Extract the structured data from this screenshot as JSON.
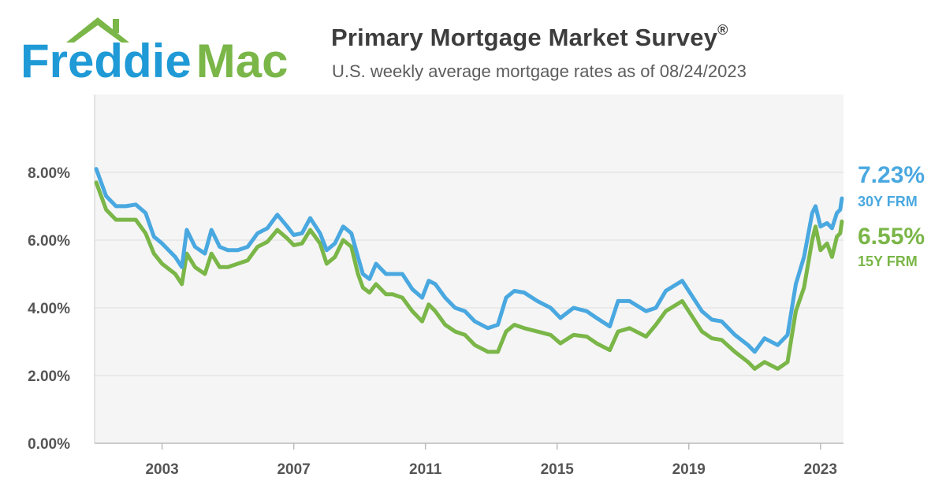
{
  "header": {
    "logo_text_1": "Freddie",
    "logo_text_2": "Mac",
    "title": "Primary Mortgage Market Survey",
    "title_mark": "®",
    "subtitle": "U.S. weekly average mortgage rates as of 08/24/2023"
  },
  "colors": {
    "blue": "#4aa8e0",
    "green": "#7ab648",
    "plot_bg": "#f5f5f5",
    "grid": "#dddddd",
    "tick_text": "#555555"
  },
  "latest": {
    "y30_value": "7.23%",
    "y30_label": "30Y FRM",
    "y15_value": "6.55%",
    "y15_label": "15Y FRM"
  },
  "chart_data": {
    "type": "line",
    "xlim": [
      2000.95,
      2023.7
    ],
    "ylim": [
      0,
      10.3
    ],
    "grid": "horizontal",
    "y_ticks": [
      0,
      2,
      4,
      6,
      8
    ],
    "y_tick_labels": [
      "0.00%",
      "2.00%",
      "4.00%",
      "6.00%",
      "8.00%"
    ],
    "x_ticks": [
      2003,
      2007,
      2011,
      2015,
      2019,
      2023
    ],
    "x_tick_labels": [
      "2003",
      "2007",
      "2011",
      "2015",
      "2019",
      "2023"
    ],
    "series": [
      {
        "name": "30Y FRM",
        "color": "#4aa8e0",
        "points": [
          [
            2001.0,
            8.1
          ],
          [
            2001.3,
            7.3
          ],
          [
            2001.6,
            7.0
          ],
          [
            2001.9,
            7.0
          ],
          [
            2002.2,
            7.05
          ],
          [
            2002.5,
            6.8
          ],
          [
            2002.75,
            6.1
          ],
          [
            2003.0,
            5.9
          ],
          [
            2003.4,
            5.5
          ],
          [
            2003.6,
            5.2
          ],
          [
            2003.75,
            6.3
          ],
          [
            2004.0,
            5.8
          ],
          [
            2004.3,
            5.6
          ],
          [
            2004.5,
            6.3
          ],
          [
            2004.75,
            5.8
          ],
          [
            2005.0,
            5.7
          ],
          [
            2005.3,
            5.7
          ],
          [
            2005.6,
            5.8
          ],
          [
            2005.9,
            6.2
          ],
          [
            2006.2,
            6.35
          ],
          [
            2006.5,
            6.75
          ],
          [
            2006.8,
            6.4
          ],
          [
            2007.0,
            6.15
          ],
          [
            2007.25,
            6.2
          ],
          [
            2007.5,
            6.65
          ],
          [
            2007.8,
            6.2
          ],
          [
            2008.0,
            5.7
          ],
          [
            2008.25,
            5.9
          ],
          [
            2008.5,
            6.4
          ],
          [
            2008.75,
            6.2
          ],
          [
            2008.95,
            5.5
          ],
          [
            2009.1,
            5.0
          ],
          [
            2009.3,
            4.85
          ],
          [
            2009.5,
            5.3
          ],
          [
            2009.8,
            5.0
          ],
          [
            2010.0,
            5.0
          ],
          [
            2010.3,
            5.0
          ],
          [
            2010.6,
            4.55
          ],
          [
            2010.9,
            4.3
          ],
          [
            2011.1,
            4.8
          ],
          [
            2011.3,
            4.7
          ],
          [
            2011.6,
            4.3
          ],
          [
            2011.9,
            4.0
          ],
          [
            2012.2,
            3.9
          ],
          [
            2012.5,
            3.6
          ],
          [
            2012.9,
            3.4
          ],
          [
            2013.2,
            3.5
          ],
          [
            2013.45,
            4.3
          ],
          [
            2013.7,
            4.5
          ],
          [
            2014.0,
            4.45
          ],
          [
            2014.4,
            4.2
          ],
          [
            2014.8,
            4.0
          ],
          [
            2015.1,
            3.7
          ],
          [
            2015.5,
            4.0
          ],
          [
            2015.9,
            3.9
          ],
          [
            2016.2,
            3.7
          ],
          [
            2016.6,
            3.45
          ],
          [
            2016.85,
            4.2
          ],
          [
            2017.2,
            4.2
          ],
          [
            2017.7,
            3.9
          ],
          [
            2018.0,
            4.0
          ],
          [
            2018.3,
            4.5
          ],
          [
            2018.8,
            4.8
          ],
          [
            2019.0,
            4.5
          ],
          [
            2019.4,
            3.9
          ],
          [
            2019.7,
            3.65
          ],
          [
            2020.0,
            3.6
          ],
          [
            2020.4,
            3.2
          ],
          [
            2020.8,
            2.9
          ],
          [
            2021.0,
            2.7
          ],
          [
            2021.3,
            3.1
          ],
          [
            2021.7,
            2.9
          ],
          [
            2022.0,
            3.2
          ],
          [
            2022.25,
            4.7
          ],
          [
            2022.5,
            5.5
          ],
          [
            2022.75,
            6.8
          ],
          [
            2022.85,
            7.0
          ],
          [
            2023.0,
            6.4
          ],
          [
            2023.2,
            6.5
          ],
          [
            2023.35,
            6.35
          ],
          [
            2023.5,
            6.8
          ],
          [
            2023.6,
            6.9
          ],
          [
            2023.65,
            7.23
          ]
        ]
      },
      {
        "name": "15Y FRM",
        "color": "#7ab648",
        "points": [
          [
            2001.0,
            7.7
          ],
          [
            2001.3,
            6.9
          ],
          [
            2001.6,
            6.6
          ],
          [
            2001.9,
            6.6
          ],
          [
            2002.2,
            6.6
          ],
          [
            2002.5,
            6.2
          ],
          [
            2002.75,
            5.6
          ],
          [
            2003.0,
            5.3
          ],
          [
            2003.4,
            5.0
          ],
          [
            2003.6,
            4.7
          ],
          [
            2003.75,
            5.6
          ],
          [
            2004.0,
            5.2
          ],
          [
            2004.3,
            5.0
          ],
          [
            2004.5,
            5.6
          ],
          [
            2004.75,
            5.2
          ],
          [
            2005.0,
            5.2
          ],
          [
            2005.3,
            5.3
          ],
          [
            2005.6,
            5.4
          ],
          [
            2005.9,
            5.8
          ],
          [
            2006.2,
            5.95
          ],
          [
            2006.5,
            6.3
          ],
          [
            2006.8,
            6.05
          ],
          [
            2007.0,
            5.85
          ],
          [
            2007.25,
            5.9
          ],
          [
            2007.5,
            6.3
          ],
          [
            2007.8,
            5.9
          ],
          [
            2008.0,
            5.3
          ],
          [
            2008.25,
            5.5
          ],
          [
            2008.5,
            6.0
          ],
          [
            2008.75,
            5.8
          ],
          [
            2008.95,
            5.0
          ],
          [
            2009.1,
            4.6
          ],
          [
            2009.3,
            4.45
          ],
          [
            2009.5,
            4.7
          ],
          [
            2009.8,
            4.4
          ],
          [
            2010.0,
            4.4
          ],
          [
            2010.3,
            4.3
          ],
          [
            2010.6,
            3.9
          ],
          [
            2010.9,
            3.6
          ],
          [
            2011.1,
            4.1
          ],
          [
            2011.3,
            3.9
          ],
          [
            2011.6,
            3.5
          ],
          [
            2011.9,
            3.3
          ],
          [
            2012.2,
            3.2
          ],
          [
            2012.5,
            2.9
          ],
          [
            2012.9,
            2.7
          ],
          [
            2013.2,
            2.7
          ],
          [
            2013.45,
            3.3
          ],
          [
            2013.7,
            3.5
          ],
          [
            2014.0,
            3.4
          ],
          [
            2014.4,
            3.3
          ],
          [
            2014.8,
            3.2
          ],
          [
            2015.1,
            2.95
          ],
          [
            2015.5,
            3.2
          ],
          [
            2015.9,
            3.15
          ],
          [
            2016.2,
            2.95
          ],
          [
            2016.6,
            2.75
          ],
          [
            2016.85,
            3.3
          ],
          [
            2017.2,
            3.4
          ],
          [
            2017.7,
            3.15
          ],
          [
            2018.0,
            3.5
          ],
          [
            2018.3,
            3.9
          ],
          [
            2018.8,
            4.2
          ],
          [
            2019.0,
            3.9
          ],
          [
            2019.4,
            3.3
          ],
          [
            2019.7,
            3.1
          ],
          [
            2020.0,
            3.05
          ],
          [
            2020.4,
            2.7
          ],
          [
            2020.8,
            2.4
          ],
          [
            2021.0,
            2.2
          ],
          [
            2021.3,
            2.4
          ],
          [
            2021.7,
            2.2
          ],
          [
            2022.0,
            2.4
          ],
          [
            2022.25,
            3.9
          ],
          [
            2022.5,
            4.6
          ],
          [
            2022.75,
            6.0
          ],
          [
            2022.85,
            6.4
          ],
          [
            2023.0,
            5.7
          ],
          [
            2023.2,
            5.9
          ],
          [
            2023.35,
            5.5
          ],
          [
            2023.5,
            6.1
          ],
          [
            2023.6,
            6.2
          ],
          [
            2023.65,
            6.55
          ]
        ]
      }
    ]
  }
}
